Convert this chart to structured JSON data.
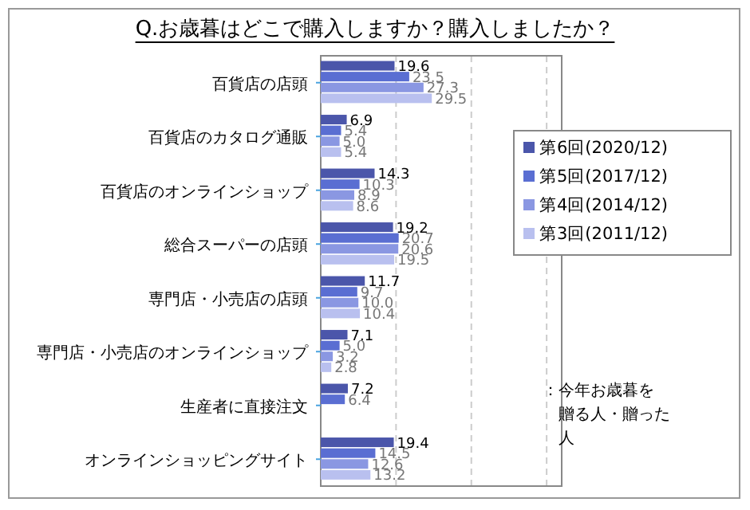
{
  "chart_data": {
    "type": "bar",
    "orientation": "horizontal",
    "title": "Q.お歳暮はどこで購入しますか？購入しましたか？",
    "categories": [
      "百貨店の店頭",
      "百貨店のカタログ通販",
      "百貨店のオンラインショップ",
      "総合スーパーの店頭",
      "専門店・小売店の店頭",
      "専門店・小売店のオンラインショップ",
      "生産者に直接注文",
      "オンラインショッピングサイト"
    ],
    "series": [
      {
        "name": "第6回(2020/12)",
        "color": "#4b56aa",
        "values": [
          19.6,
          6.9,
          14.3,
          19.2,
          11.7,
          7.1,
          7.2,
          19.4
        ],
        "value_labels": [
          "19.6",
          "6.9",
          "14.3",
          "19.2",
          "11.7",
          "7.1",
          "7.2",
          "19.4"
        ]
      },
      {
        "name": "第5回(2017/12)",
        "color": "#5a6ed2",
        "values": [
          23.5,
          5.4,
          10.3,
          20.7,
          9.7,
          5,
          6.4,
          14.5
        ],
        "value_labels": [
          "23.5",
          "5.4",
          "10.3",
          "20.7",
          "9.7",
          "5.0",
          "6.4",
          "14.5"
        ]
      },
      {
        "name": "第4回(2014/12)",
        "color": "#8a97e2",
        "values": [
          27.3,
          5,
          8.9,
          20.6,
          10,
          3.2,
          null,
          12.6
        ],
        "value_labels": [
          "27.3",
          "5.0",
          "8.9",
          "20.6",
          "10.0",
          "3.2",
          null,
          "12.6"
        ]
      },
      {
        "name": "第3回(2011/12)",
        "color": "#b9c0ef",
        "values": [
          29.5,
          5.4,
          8.6,
          19.5,
          10.4,
          2.8,
          null,
          13.2
        ],
        "value_labels": [
          "29.5",
          "5.4",
          "8.6",
          "19.5",
          "10.4",
          "2.8",
          null,
          "13.2"
        ]
      }
    ],
    "xlim": [
      0,
      64
    ],
    "xticks": [
      {
        "value": 20,
        "label": null
      },
      {
        "value": 40,
        "label": null
      },
      {
        "value": 60,
        "label": null
      }
    ],
    "grid": "x",
    "legend": "right",
    "tick_labels": "y",
    "annotations": [
      "：今年お歳暮を贈る人・贈った人"
    ]
  }
}
